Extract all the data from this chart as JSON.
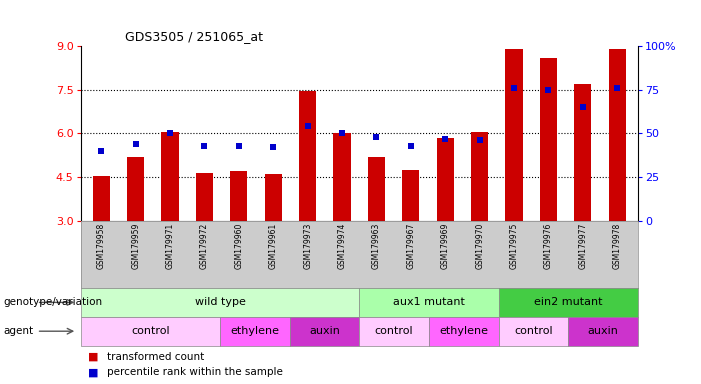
{
  "title": "GDS3505 / 251065_at",
  "samples": [
    "GSM179958",
    "GSM179959",
    "GSM179971",
    "GSM179972",
    "GSM179960",
    "GSM179961",
    "GSM179973",
    "GSM179974",
    "GSM179963",
    "GSM179967",
    "GSM179969",
    "GSM179970",
    "GSM179975",
    "GSM179976",
    "GSM179977",
    "GSM179978"
  ],
  "bar_values": [
    4.55,
    5.2,
    6.05,
    4.65,
    4.7,
    4.6,
    7.45,
    6.0,
    5.2,
    4.75,
    5.85,
    6.05,
    8.9,
    8.6,
    7.7,
    8.9
  ],
  "dot_percent": [
    40,
    44,
    50,
    43,
    43,
    42,
    54,
    50,
    48,
    43,
    47,
    46,
    76,
    75,
    65,
    76
  ],
  "bar_color": "#cc0000",
  "dot_color": "#0000cc",
  "ylim_left": [
    3,
    9
  ],
  "yticks_left": [
    3,
    4.5,
    6,
    7.5,
    9
  ],
  "ylim_right": [
    0,
    100
  ],
  "yticks_right": [
    0,
    25,
    50,
    75,
    100
  ],
  "ytick_right_labels": [
    "0",
    "25",
    "50",
    "75",
    "100%"
  ],
  "hlines": [
    4.5,
    6.0,
    7.5
  ],
  "genotype_groups": [
    {
      "label": "wild type",
      "start": 0,
      "end": 8,
      "color": "#ccffcc"
    },
    {
      "label": "aux1 mutant",
      "start": 8,
      "end": 12,
      "color": "#aaffaa"
    },
    {
      "label": "ein2 mutant",
      "start": 12,
      "end": 16,
      "color": "#44cc44"
    }
  ],
  "agent_groups": [
    {
      "label": "control",
      "start": 0,
      "end": 4,
      "color": "#ffccff"
    },
    {
      "label": "ethylene",
      "start": 4,
      "end": 6,
      "color": "#ff66ff"
    },
    {
      "label": "auxin",
      "start": 6,
      "end": 8,
      "color": "#cc33cc"
    },
    {
      "label": "control",
      "start": 8,
      "end": 10,
      "color": "#ffccff"
    },
    {
      "label": "ethylene",
      "start": 10,
      "end": 12,
      "color": "#ff66ff"
    },
    {
      "label": "control",
      "start": 12,
      "end": 14,
      "color": "#ffccff"
    },
    {
      "label": "auxin",
      "start": 14,
      "end": 16,
      "color": "#cc33cc"
    }
  ],
  "legend_items": [
    {
      "label": "transformed count",
      "color": "#cc0000"
    },
    {
      "label": "percentile rank within the sample",
      "color": "#0000cc"
    }
  ],
  "background_color": "#ffffff",
  "bar_width": 0.5,
  "genotype_row_label": "genotype/variation",
  "agent_row_label": "agent",
  "tick_bg_color": "#cccccc"
}
